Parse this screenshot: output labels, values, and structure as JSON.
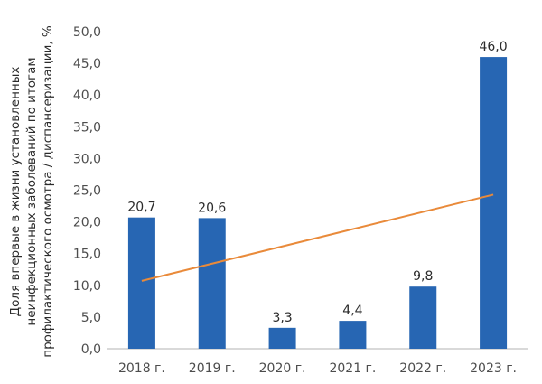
{
  "chart_data": {
    "type": "bar",
    "categories": [
      "2018 г.",
      "2019 г.",
      "2020 г.",
      "2021 г.",
      "2022 г.",
      "2023 г."
    ],
    "values": [
      20.7,
      20.6,
      3.3,
      4.4,
      9.8,
      46.0
    ],
    "data_labels": [
      "20,7",
      "20,6",
      "3,3",
      "4,4",
      "9,8",
      "46,0"
    ],
    "ylabel_lines": [
      "Доля впервые в жизни установленных",
      "неинфекционных заболеваний по итогам",
      "профилактического осмотра / диспансеризации, %"
    ],
    "ylim": [
      0,
      50
    ],
    "yticks": [
      0,
      5,
      10,
      15,
      20,
      25,
      30,
      35,
      40,
      45,
      50
    ],
    "ytick_labels": [
      "0,0",
      "5,0",
      "10,0",
      "15,0",
      "20,0",
      "25,0",
      "30,0",
      "35,0",
      "40,0",
      "45,0",
      "50,0"
    ],
    "trendline": {
      "type": "linear",
      "from": 10.7,
      "to": 24.3
    },
    "grid": false,
    "bar_color": "#2766b3",
    "trend_color": "#e98a3a",
    "axis_color": "#b3b3b3"
  }
}
